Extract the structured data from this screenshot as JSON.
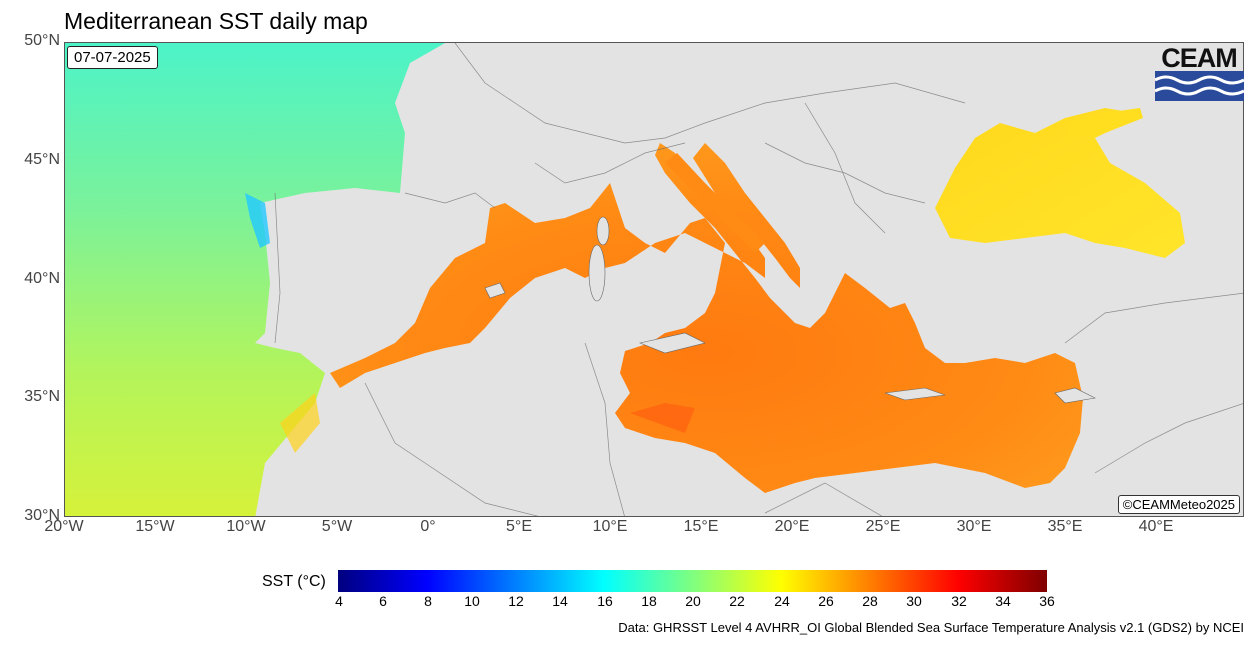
{
  "title": "Mediterranean SST daily map",
  "date": "07-07-2025",
  "credit": "©CEAMMeteo2025",
  "logo_text": "CEAM",
  "source": "Data: GHRSST Level 4 AVHRR_OI Global Blended Sea Surface Temperature Analysis v2.1 (GDS2) by NCEI",
  "y_axis": {
    "ticks": [
      "50°N",
      "45°N",
      "40°N",
      "35°N",
      "30°N"
    ]
  },
  "x_axis": {
    "ticks": [
      "20°W",
      "15°W",
      "10°W",
      "5°W",
      "0°",
      "5°E",
      "10°E",
      "15°E",
      "20°E",
      "25°E",
      "30°E",
      "35°E",
      "40°E"
    ]
  },
  "legend": {
    "title": "SST (°C)",
    "ticks": [
      "4",
      "6",
      "8",
      "10",
      "12",
      "14",
      "16",
      "18",
      "20",
      "22",
      "24",
      "26",
      "28",
      "30",
      "32",
      "34",
      "36"
    ],
    "colors": [
      "#00007f",
      "#0000ff",
      "#007fff",
      "#00ffff",
      "#7fff7f",
      "#ffff00",
      "#ff7f00",
      "#ff0000",
      "#7f0000"
    ]
  },
  "colors": {
    "land": "#e3e3e3",
    "atlantic": "#7fe88f",
    "med": "#ff8a10",
    "black_sea": "#ffd21a"
  }
}
